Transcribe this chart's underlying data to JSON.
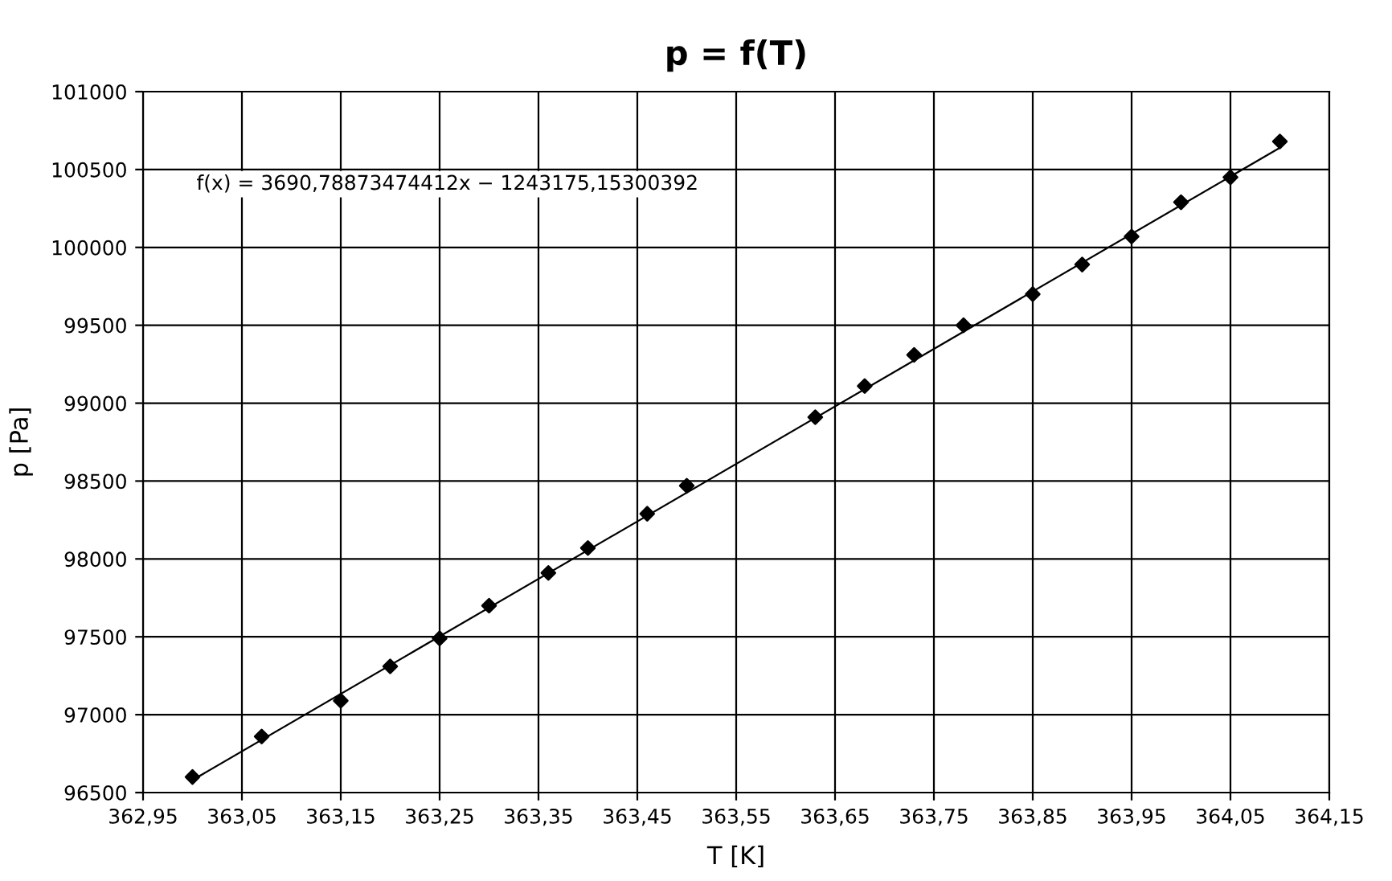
{
  "chart_data": {
    "type": "scatter",
    "title": "p = f(T)",
    "xlabel": "T [K]",
    "ylabel": "p [Pa]",
    "annotations": [
      "f(x) = 3690,78873474412x − 1243175,15300392"
    ],
    "series": [
      {
        "color": "#000000",
        "marker": "diamond",
        "x": [
          363.0,
          363.07,
          363.15,
          363.2,
          363.25,
          363.3,
          363.36,
          363.4,
          363.46,
          363.5,
          363.63,
          363.68,
          363.73,
          363.78,
          363.85,
          363.9,
          363.95,
          364.0,
          364.05,
          364.1
        ],
        "values": [
          96600,
          96860,
          97090,
          97310,
          97490,
          97700,
          97910,
          98070,
          98290,
          98470,
          98910,
          99110,
          99310,
          99500,
          99700,
          99890,
          100070,
          100290,
          100450,
          100680
        ]
      },
      {
        "type": "line",
        "color": "#000000",
        "marker": "none",
        "line_style": "solid",
        "x": [
          363.0,
          364.1
        ],
        "values": [
          96580,
          100640
        ]
      }
    ],
    "xlim": [
      362.95,
      364.15
    ],
    "xticks": [
      {
        "value": 362.95,
        "label": "362,95"
      },
      {
        "value": 363.05,
        "label": "363,05"
      },
      {
        "value": 363.15,
        "label": "363,15"
      },
      {
        "value": 363.25,
        "label": "363,25"
      },
      {
        "value": 363.35,
        "label": "363,35"
      },
      {
        "value": 363.45,
        "label": "363,45"
      },
      {
        "value": 363.55,
        "label": "363,55"
      },
      {
        "value": 363.65,
        "label": "363,65"
      },
      {
        "value": 363.75,
        "label": "363,75"
      },
      {
        "value": 363.85,
        "label": "363,85"
      },
      {
        "value": 363.95,
        "label": "363,95"
      },
      {
        "value": 364.05,
        "label": "364,05"
      },
      {
        "value": 364.15,
        "label": "364,15"
      }
    ],
    "ylim": [
      96500,
      101000
    ],
    "yticks": [
      96500,
      97000,
      97500,
      98000,
      98500,
      99000,
      99500,
      100000,
      100500,
      101000
    ],
    "grid": true,
    "legend": false
  }
}
